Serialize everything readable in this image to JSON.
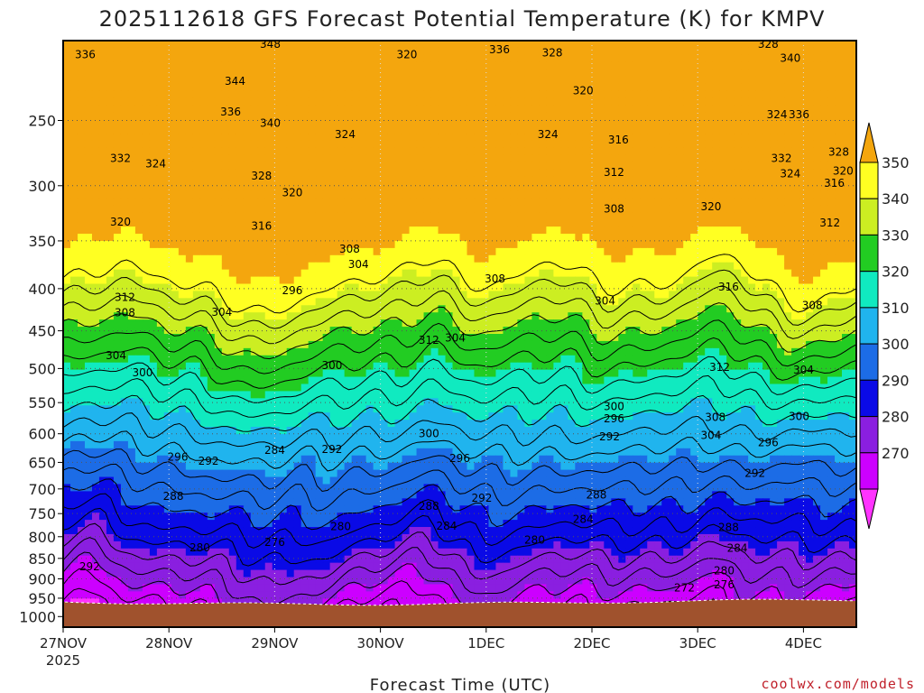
{
  "chart_data": {
    "type": "heatmap",
    "title": "2025112618 GFS Forecast Potential Temperature (K) for KMPV",
    "xlabel": "Forecast Time (UTC)",
    "ylabel": "",
    "credit": "coolwx.com/models",
    "x_ticks": [
      {
        "label": "27NOV",
        "sub": "2025",
        "t": 0
      },
      {
        "label": "28NOV",
        "sub": "",
        "t": 24
      },
      {
        "label": "29NOV",
        "sub": "",
        "t": 48
      },
      {
        "label": "30NOV",
        "sub": "",
        "t": 72
      },
      {
        "label": "1DEC",
        "sub": "",
        "t": 96
      },
      {
        "label": "2DEC",
        "sub": "",
        "t": 120
      },
      {
        "label": "3DEC",
        "sub": "",
        "t": 144
      },
      {
        "label": "4DEC",
        "sub": "",
        "t": 168
      }
    ],
    "x_range_hours": [
      0,
      180
    ],
    "y_ticks": [
      250,
      300,
      350,
      400,
      450,
      500,
      550,
      600,
      650,
      700,
      750,
      800,
      850,
      900,
      950,
      1000
    ],
    "y_range_hpa": [
      200,
      1030
    ],
    "y_scale": "log",
    "colorbar": {
      "levels": [
        260,
        270,
        280,
        290,
        300,
        310,
        320,
        330,
        340,
        350,
        360
      ],
      "labels": [
        "270",
        "280",
        "290",
        "300",
        "310",
        "320",
        "330",
        "340",
        "350"
      ],
      "colors": [
        "#ff33ff",
        "#cc00ff",
        "#8a1fe0",
        "#0a0ae6",
        "#1c6ce6",
        "#20b4ee",
        "#10eac0",
        "#22cc22",
        "#ccee22",
        "#ffff22",
        "#f4a60e"
      ]
    },
    "ground_color": "#a0522d",
    "surface_pressure_hpa": 960,
    "contour_interval_K": 4,
    "contour_labels": [
      {
        "t": 47,
        "p": 202,
        "v": "348"
      },
      {
        "t": 5,
        "p": 208,
        "v": "336"
      },
      {
        "t": 78,
        "p": 208,
        "v": "320"
      },
      {
        "t": 99,
        "p": 205,
        "v": "336"
      },
      {
        "t": 111,
        "p": 207,
        "v": "328"
      },
      {
        "t": 160,
        "p": 202,
        "v": "328"
      },
      {
        "t": 165,
        "p": 210,
        "v": "340"
      },
      {
        "t": 39,
        "p": 224,
        "v": "344"
      },
      {
        "t": 118,
        "p": 230,
        "v": "320"
      },
      {
        "t": 38,
        "p": 244,
        "v": "336"
      },
      {
        "t": 47,
        "p": 252,
        "v": "340"
      },
      {
        "t": 162,
        "p": 246,
        "v": "324"
      },
      {
        "t": 167,
        "p": 246,
        "v": "336"
      },
      {
        "t": 64,
        "p": 260,
        "v": "324"
      },
      {
        "t": 110,
        "p": 260,
        "v": "324"
      },
      {
        "t": 126,
        "p": 264,
        "v": "316"
      },
      {
        "t": 13,
        "p": 278,
        "v": "332"
      },
      {
        "t": 21,
        "p": 282,
        "v": "324"
      },
      {
        "t": 163,
        "p": 278,
        "v": "332"
      },
      {
        "t": 176,
        "p": 273,
        "v": "328"
      },
      {
        "t": 125,
        "p": 289,
        "v": "312"
      },
      {
        "t": 45,
        "p": 292,
        "v": "328"
      },
      {
        "t": 165,
        "p": 290,
        "v": "324"
      },
      {
        "t": 177,
        "p": 288,
        "v": "320"
      },
      {
        "t": 175,
        "p": 298,
        "v": "316"
      },
      {
        "t": 52,
        "p": 306,
        "v": "320"
      },
      {
        "t": 125,
        "p": 320,
        "v": "308"
      },
      {
        "t": 147,
        "p": 318,
        "v": "320"
      },
      {
        "t": 13,
        "p": 332,
        "v": "320"
      },
      {
        "t": 45,
        "p": 336,
        "v": "316"
      },
      {
        "t": 174,
        "p": 333,
        "v": "312"
      },
      {
        "t": 65,
        "p": 358,
        "v": "308"
      },
      {
        "t": 67,
        "p": 374,
        "v": "304"
      },
      {
        "t": 98,
        "p": 389,
        "v": "308"
      },
      {
        "t": 151,
        "p": 398,
        "v": "316"
      },
      {
        "t": 52,
        "p": 402,
        "v": "296"
      },
      {
        "t": 14,
        "p": 410,
        "v": "312"
      },
      {
        "t": 123,
        "p": 414,
        "v": "304"
      },
      {
        "t": 170,
        "p": 419,
        "v": "308"
      },
      {
        "t": 14,
        "p": 428,
        "v": "308"
      },
      {
        "t": 36,
        "p": 427,
        "v": "304"
      },
      {
        "t": 89,
        "p": 459,
        "v": "304"
      },
      {
        "t": 83,
        "p": 462,
        "v": "312"
      },
      {
        "t": 12,
        "p": 482,
        "v": "304"
      },
      {
        "t": 18,
        "p": 506,
        "v": "300"
      },
      {
        "t": 61,
        "p": 496,
        "v": "300"
      },
      {
        "t": 149,
        "p": 498,
        "v": "312"
      },
      {
        "t": 168,
        "p": 502,
        "v": "304"
      },
      {
        "t": 125,
        "p": 556,
        "v": "300"
      },
      {
        "t": 148,
        "p": 573,
        "v": "308"
      },
      {
        "t": 167,
        "p": 572,
        "v": "300"
      },
      {
        "t": 125,
        "p": 575,
        "v": "296"
      },
      {
        "t": 83,
        "p": 600,
        "v": "300"
      },
      {
        "t": 124,
        "p": 605,
        "v": "292"
      },
      {
        "t": 147,
        "p": 603,
        "v": "304"
      },
      {
        "t": 160,
        "p": 615,
        "v": "296"
      },
      {
        "t": 26,
        "p": 640,
        "v": "296"
      },
      {
        "t": 33,
        "p": 648,
        "v": "292"
      },
      {
        "t": 48,
        "p": 628,
        "v": "284"
      },
      {
        "t": 61,
        "p": 627,
        "v": "292"
      },
      {
        "t": 90,
        "p": 643,
        "v": "296"
      },
      {
        "t": 157,
        "p": 670,
        "v": "292"
      },
      {
        "t": 25,
        "p": 715,
        "v": "288"
      },
      {
        "t": 121,
        "p": 712,
        "v": "288"
      },
      {
        "t": 95,
        "p": 718,
        "v": "292"
      },
      {
        "t": 83,
        "p": 735,
        "v": "288"
      },
      {
        "t": 118,
        "p": 762,
        "v": "284"
      },
      {
        "t": 63,
        "p": 778,
        "v": "280"
      },
      {
        "t": 87,
        "p": 777,
        "v": "284"
      },
      {
        "t": 151,
        "p": 780,
        "v": "288"
      },
      {
        "t": 48,
        "p": 813,
        "v": "276"
      },
      {
        "t": 107,
        "p": 808,
        "v": "280"
      },
      {
        "t": 31,
        "p": 825,
        "v": "280"
      },
      {
        "t": 153,
        "p": 826,
        "v": "284"
      },
      {
        "t": 6,
        "p": 870,
        "v": "292"
      },
      {
        "t": 150,
        "p": 880,
        "v": "280"
      },
      {
        "t": 150,
        "p": 915,
        "v": "276"
      },
      {
        "t": 141,
        "p": 923,
        "v": "272"
      }
    ]
  }
}
